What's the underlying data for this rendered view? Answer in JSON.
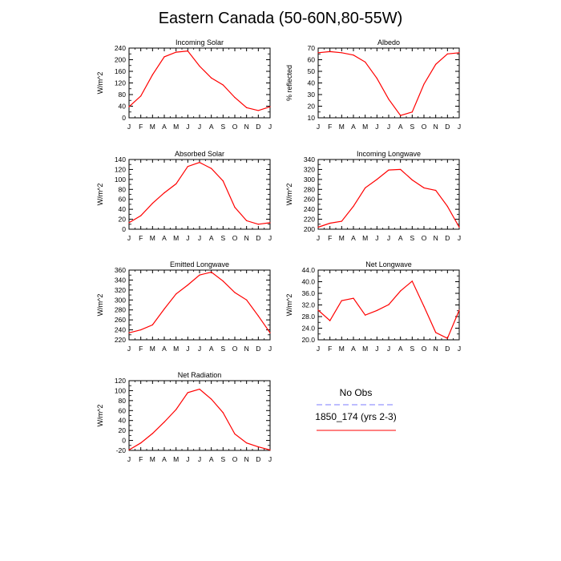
{
  "figure": {
    "title": "Eastern Canada (50-60N,80-55W)"
  },
  "legend": {
    "items": [
      {
        "label": "No Obs",
        "color": "#7b7bff",
        "dash": true
      },
      {
        "label": "1850_174 (yrs 2-3)",
        "color": "#ff0000",
        "dash": false
      }
    ]
  },
  "chart_data": [
    {
      "type": "line",
      "title": "Incoming Solar",
      "ylabel": "W/m^2",
      "categories": [
        "J",
        "F",
        "M",
        "A",
        "M",
        "J",
        "J",
        "A",
        "S",
        "O",
        "N",
        "D",
        "J"
      ],
      "ylim": [
        0,
        240
      ],
      "yticks": [
        "0",
        "40",
        "80",
        "120",
        "160",
        "200",
        "240"
      ],
      "series": [
        {
          "name": "1850_174 (yrs 2-3)",
          "color": "#ff0000",
          "values": [
            38,
            75,
            148,
            210,
            226,
            230,
            178,
            137,
            113,
            70,
            35,
            25,
            38
          ]
        }
      ]
    },
    {
      "type": "line",
      "title": "Albedo",
      "ylabel": "% reflected",
      "categories": [
        "J",
        "F",
        "M",
        "A",
        "M",
        "J",
        "J",
        "A",
        "S",
        "O",
        "N",
        "D",
        "J"
      ],
      "ylim": [
        10,
        70
      ],
      "yticks": [
        "10",
        "20",
        "30",
        "40",
        "50",
        "60",
        "70"
      ],
      "series": [
        {
          "name": "1850_174 (yrs 2-3)",
          "color": "#ff0000",
          "values": [
            66,
            67,
            66,
            64,
            58,
            44,
            26,
            12,
            15,
            39,
            56,
            65,
            66
          ]
        }
      ]
    },
    {
      "type": "line",
      "title": "Absorbed Solar",
      "ylabel": "W/m^2",
      "categories": [
        "J",
        "F",
        "M",
        "A",
        "M",
        "J",
        "J",
        "A",
        "S",
        "O",
        "N",
        "D",
        "J"
      ],
      "ylim": [
        0,
        140
      ],
      "yticks": [
        "0",
        "20",
        "40",
        "60",
        "80",
        "100",
        "120",
        "140"
      ],
      "series": [
        {
          "name": "1850_174 (yrs 2-3)",
          "color": "#ff0000",
          "values": [
            13,
            27,
            52,
            73,
            91,
            126,
            134,
            122,
            97,
            44,
            17,
            10,
            13
          ]
        }
      ]
    },
    {
      "type": "line",
      "title": "Incoming Longwave",
      "ylabel": "W/m^2",
      "categories": [
        "J",
        "F",
        "M",
        "A",
        "M",
        "J",
        "J",
        "A",
        "S",
        "O",
        "N",
        "D",
        "J"
      ],
      "ylim": [
        200,
        340
      ],
      "yticks": [
        "200",
        "220",
        "240",
        "260",
        "280",
        "300",
        "320",
        "340"
      ],
      "series": [
        {
          "name": "1850_174 (yrs 2-3)",
          "color": "#ff0000",
          "values": [
            204,
            212,
            216,
            246,
            283,
            300,
            319,
            320,
            299,
            283,
            278,
            246,
            204
          ]
        }
      ]
    },
    {
      "type": "line",
      "title": "Emitted Longwave",
      "ylabel": "W/m^2",
      "categories": [
        "J",
        "F",
        "M",
        "A",
        "M",
        "J",
        "J",
        "A",
        "S",
        "O",
        "N",
        "D",
        "J"
      ],
      "ylim": [
        220,
        360
      ],
      "yticks": [
        "220",
        "240",
        "260",
        "280",
        "300",
        "320",
        "340",
        "360"
      ],
      "series": [
        {
          "name": "1850_174 (yrs 2-3)",
          "color": "#ff0000",
          "values": [
            234,
            240,
            250,
            282,
            312,
            330,
            350,
            356,
            338,
            315,
            300,
            268,
            234
          ]
        }
      ]
    },
    {
      "type": "line",
      "title": "Net Longwave",
      "ylabel": "W/m^2",
      "categories": [
        "J",
        "F",
        "M",
        "A",
        "M",
        "J",
        "J",
        "A",
        "S",
        "O",
        "N",
        "D",
        "J"
      ],
      "ylim": [
        20,
        44
      ],
      "yticks": [
        "20.0",
        "24.0",
        "28.0",
        "32.0",
        "36.0",
        "40.0",
        "44.0"
      ],
      "series": [
        {
          "name": "1850_174 (yrs 2-3)",
          "color": "#ff0000",
          "values": [
            30.2,
            26.6,
            33.5,
            34.3,
            28.5,
            30.1,
            32.1,
            36.8,
            40.2,
            31.5,
            22.5,
            20.5,
            30.2
          ]
        }
      ]
    },
    {
      "type": "line",
      "title": "Net Radiation",
      "ylabel": "W/m^2",
      "categories": [
        "J",
        "F",
        "M",
        "A",
        "M",
        "J",
        "J",
        "A",
        "S",
        "O",
        "N",
        "D",
        "J"
      ],
      "ylim": [
        -20,
        120
      ],
      "yticks": [
        "-20",
        "0",
        "20",
        "40",
        "60",
        "80",
        "100",
        "120"
      ],
      "series": [
        {
          "name": "1850_174 (yrs 2-3)",
          "color": "#ff0000",
          "values": [
            -19,
            -5,
            14,
            37,
            62,
            96,
            103,
            83,
            56,
            13,
            -5,
            -13,
            -19
          ]
        }
      ]
    }
  ]
}
